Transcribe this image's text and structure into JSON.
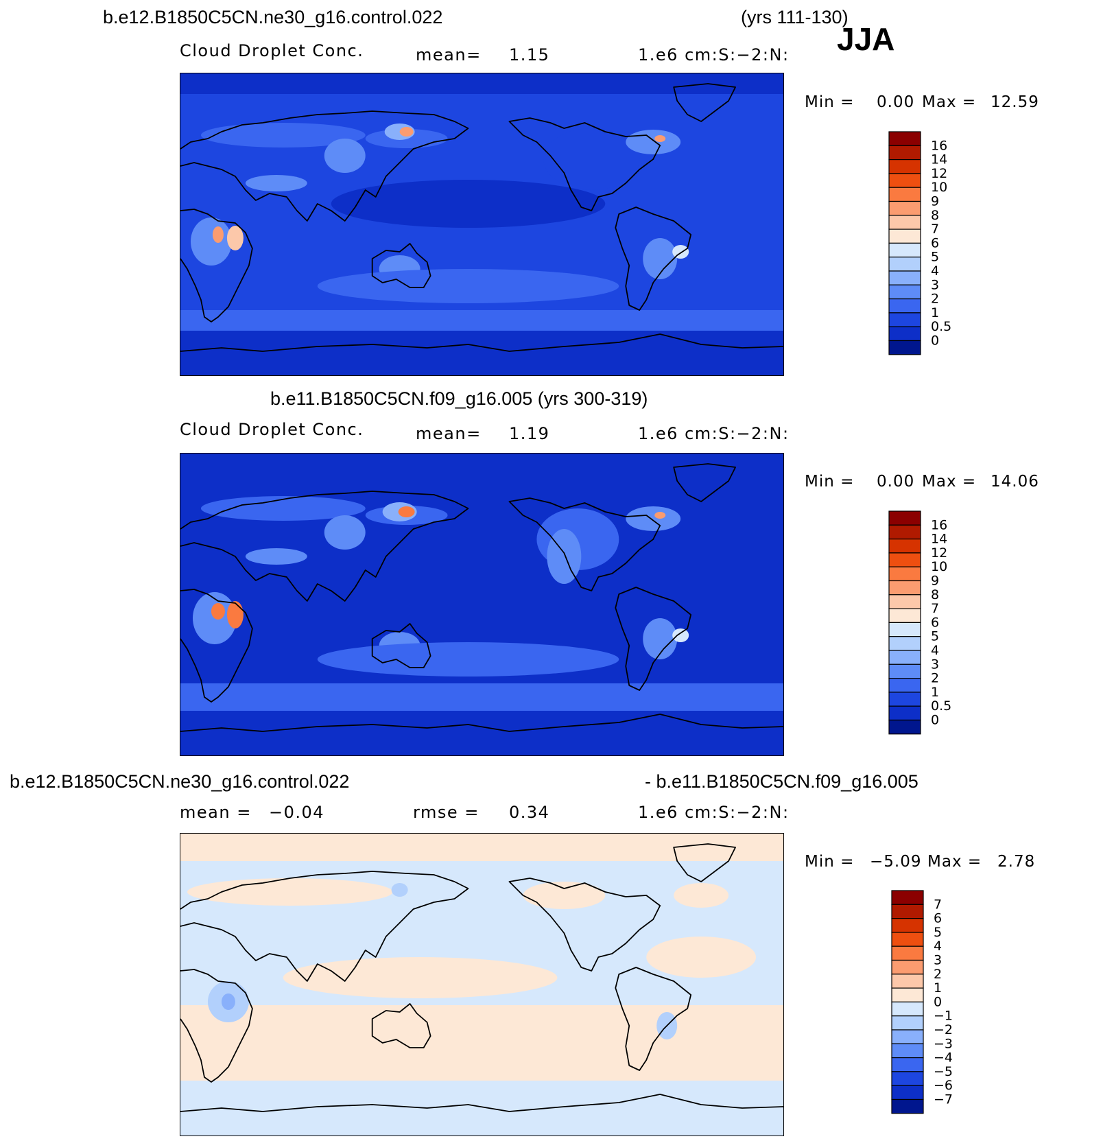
{
  "season": "JJA",
  "chart_data": [
    {
      "type": "heatmap",
      "title": "b.e12.B1850C5CN.ne30_g16.control.022",
      "title_right": "(yrs 111-130)",
      "variable": "Cloud Droplet Conc.",
      "mean_label": "mean=",
      "mean_value": "1.15",
      "units": "1.e6 cm:S:−2:N:",
      "min_label": "Min =",
      "min_value": "0.00",
      "max_label": "Max =",
      "max_value": "12.59",
      "colorbar_levels": [
        "16",
        "14",
        "12",
        "10",
        "9",
        "8",
        "7",
        "6",
        "5",
        "4",
        "3",
        "2",
        "1",
        "0.5",
        "0"
      ],
      "colorbar_colors": [
        "#8b0000",
        "#b01a00",
        "#d63300",
        "#ee4f10",
        "#fa7a40",
        "#fb9c70",
        "#fcc8aa",
        "#fde8d6",
        "#d6e8fc",
        "#b2d0fc",
        "#89b0fb",
        "#5e8cf7",
        "#3a66f0",
        "#1d46e0",
        "#0d2fc8",
        "#00168e"
      ]
    },
    {
      "type": "heatmap",
      "title": "b.e11.B1850C5CN.f09_g16.005 (yrs 300-319)",
      "variable": "Cloud Droplet Conc.",
      "mean_label": "mean=",
      "mean_value": "1.19",
      "units": "1.e6 cm:S:−2:N:",
      "min_label": "Min =",
      "min_value": "0.00",
      "max_label": "Max =",
      "max_value": "14.06",
      "colorbar_levels": [
        "16",
        "14",
        "12",
        "10",
        "9",
        "8",
        "7",
        "6",
        "5",
        "4",
        "3",
        "2",
        "1",
        "0.5",
        "0"
      ],
      "colorbar_colors": [
        "#8b0000",
        "#b01a00",
        "#d63300",
        "#ee4f10",
        "#fa7a40",
        "#fb9c70",
        "#fcc8aa",
        "#fde8d6",
        "#d6e8fc",
        "#b2d0fc",
        "#89b0fb",
        "#5e8cf7",
        "#3a66f0",
        "#1d46e0",
        "#0d2fc8",
        "#00168e"
      ]
    },
    {
      "type": "heatmap",
      "title": "b.e12.B1850C5CN.ne30_g16.control.022",
      "title_right": "- b.e11.B1850C5CN.f09_g16.005",
      "mean_label": "mean =",
      "mean_value": "−0.04",
      "rmse_label": "rmse =",
      "rmse_value": "0.34",
      "units": "1.e6 cm:S:−2:N:",
      "min_label": "Min =",
      "min_value": "−5.09",
      "max_label": "Max =",
      "max_value": "2.78",
      "colorbar_levels": [
        "7",
        "6",
        "5",
        "4",
        "3",
        "2",
        "1",
        "0",
        "−1",
        "−2",
        "−3",
        "−4",
        "−5",
        "−6",
        "−7"
      ],
      "colorbar_colors": [
        "#8b0000",
        "#b01a00",
        "#d63300",
        "#ee4f10",
        "#fa7a40",
        "#fb9c70",
        "#fcc8aa",
        "#fde8d6",
        "#d6e8fc",
        "#b2d0fc",
        "#89b0fb",
        "#5e8cf7",
        "#3a66f0",
        "#1d46e0",
        "#0d2fc8",
        "#00168e"
      ]
    }
  ]
}
